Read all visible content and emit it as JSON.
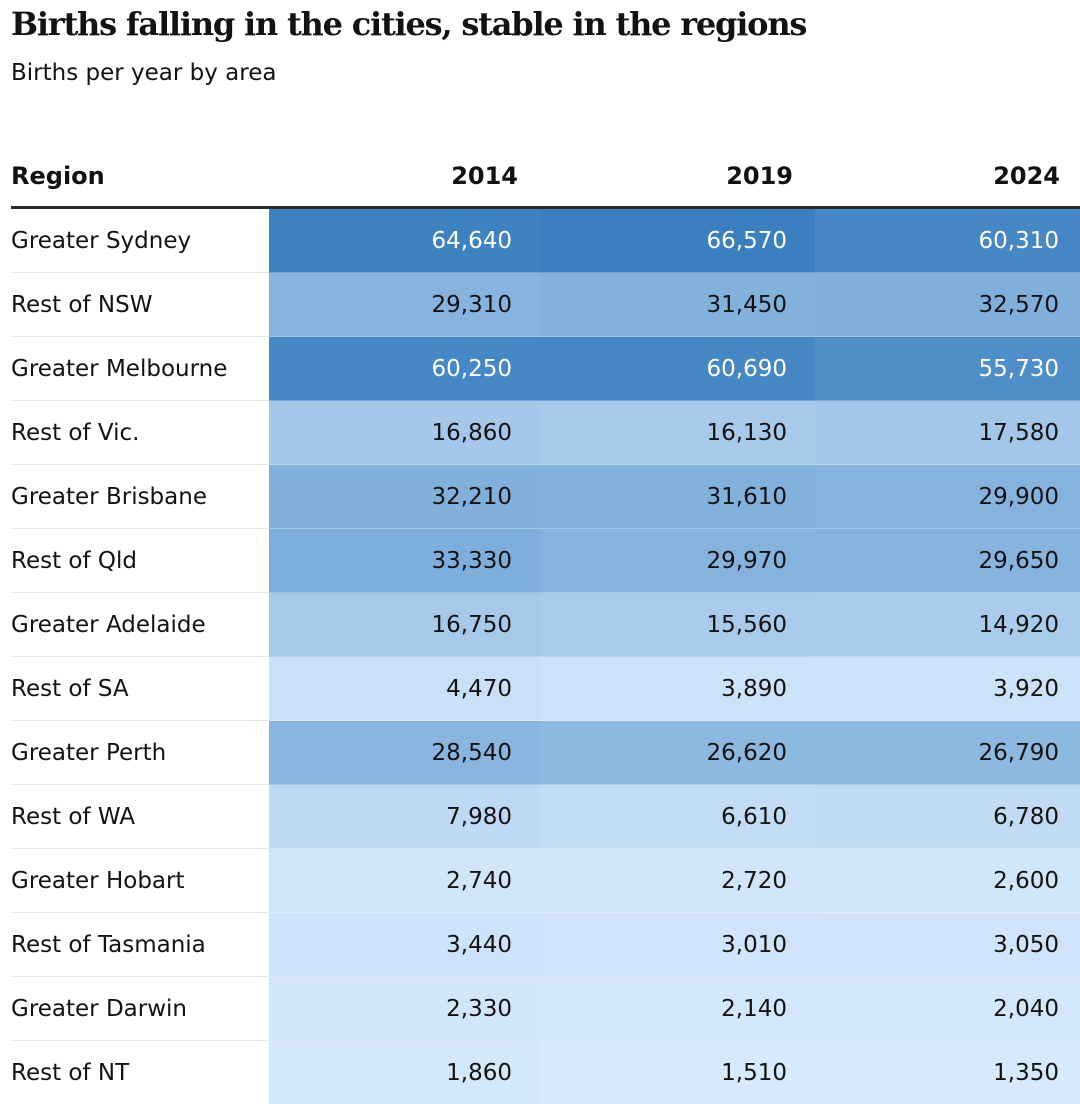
{
  "title": "Births falling in the cities, stable in the regions",
  "subtitle": "Births per year by area",
  "chart_data": {
    "type": "table",
    "title": "Births falling in the cities, stable in the regions",
    "subtitle": "Births per year by area",
    "row_header": "Region",
    "columns": [
      "2014",
      "2019",
      "2024"
    ],
    "rows": [
      {
        "region": "Greater Sydney",
        "values": [
          64640,
          66570,
          60310
        ],
        "labels": [
          "64,640",
          "66,570",
          "60,310"
        ]
      },
      {
        "region": "Rest of NSW",
        "values": [
          29310,
          31450,
          32570
        ],
        "labels": [
          "29,310",
          "31,450",
          "32,570"
        ]
      },
      {
        "region": "Greater Melbourne",
        "values": [
          60250,
          60690,
          55730
        ],
        "labels": [
          "60,250",
          "60,690",
          "55,730"
        ]
      },
      {
        "region": "Rest of Vic.",
        "values": [
          16860,
          16130,
          17580
        ],
        "labels": [
          "16,860",
          "16,130",
          "17,580"
        ]
      },
      {
        "region": "Greater Brisbane",
        "values": [
          32210,
          31610,
          29900
        ],
        "labels": [
          "32,210",
          "31,610",
          "29,900"
        ]
      },
      {
        "region": "Rest of Qld",
        "values": [
          33330,
          29970,
          29650
        ],
        "labels": [
          "33,330",
          "29,970",
          "29,650"
        ]
      },
      {
        "region": "Greater Adelaide",
        "values": [
          16750,
          15560,
          14920
        ],
        "labels": [
          "16,750",
          "15,560",
          "14,920"
        ]
      },
      {
        "region": "Rest of SA",
        "values": [
          4470,
          3890,
          3920
        ],
        "labels": [
          "4,470",
          "3,890",
          "3,920"
        ]
      },
      {
        "region": "Greater Perth",
        "values": [
          28540,
          26620,
          26790
        ],
        "labels": [
          "28,540",
          "26,620",
          "26,790"
        ]
      },
      {
        "region": "Rest of WA",
        "values": [
          7980,
          6610,
          6780
        ],
        "labels": [
          "7,980",
          "6,610",
          "6,780"
        ]
      },
      {
        "region": "Greater Hobart",
        "values": [
          2740,
          2720,
          2600
        ],
        "labels": [
          "2,740",
          "2,720",
          "2,600"
        ]
      },
      {
        "region": "Rest of Tasmania",
        "values": [
          3440,
          3010,
          3050
        ],
        "labels": [
          "3,440",
          "3,010",
          "3,050"
        ]
      },
      {
        "region": "Greater Darwin",
        "values": [
          2330,
          2140,
          2040
        ],
        "labels": [
          "2,330",
          "2,140",
          "2,040"
        ]
      },
      {
        "region": "Rest of NT",
        "values": [
          1860,
          1510,
          1350
        ],
        "labels": [
          "1,860",
          "1,510",
          "1,350"
        ]
      }
    ],
    "color_scale": {
      "low_color": "#d7eafd",
      "high_color": "#3a80c0",
      "light_text": "#ffffff",
      "dark_text": "#121212"
    }
  }
}
